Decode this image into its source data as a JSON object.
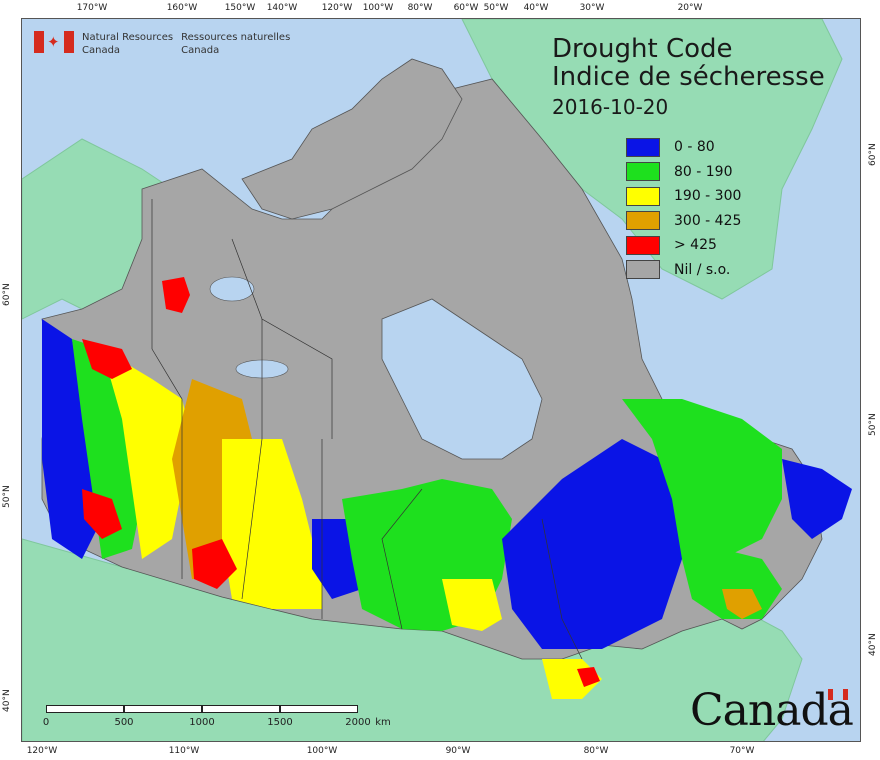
{
  "ticks": {
    "top": [
      "170°W",
      "160°W",
      "150°W",
      "140°W",
      "120°W",
      "100°W",
      "80°W",
      "60°W",
      "50°W",
      "40°W",
      "30°W",
      "20°W"
    ],
    "bottom": [
      "120°W",
      "110°W",
      "100°W",
      "90°W",
      "80°W",
      "70°W"
    ],
    "left": [
      "60°N",
      "50°N",
      "40°N"
    ],
    "right": [
      "60°N",
      "50°N",
      "40°N"
    ]
  },
  "agency": {
    "en_line1": "Natural Resources",
    "en_line2": "Canada",
    "fr_line1": "Ressources naturelles",
    "fr_line2": "Canada"
  },
  "title": {
    "line1": "Drought Code",
    "line2": "Indice de sécheresse",
    "date": "2016-10-20"
  },
  "legend": [
    {
      "label": "0 - 80",
      "color": "#0a14e6"
    },
    {
      "label": "80 - 190",
      "color": "#1ee01e"
    },
    {
      "label": "190 - 300",
      "color": "#ffff00"
    },
    {
      "label": "300 - 425",
      "color": "#e0a000"
    },
    {
      "label": "> 425",
      "color": "#ff0000"
    },
    {
      "label": "Nil / s.o.",
      "color": "#a6a6a6"
    }
  ],
  "scale": {
    "labels": [
      "0",
      "500",
      "1000",
      "1500",
      "2000",
      "km"
    ]
  },
  "wordmark": "Canada",
  "colors": {
    "water": "#b8d4f0",
    "foreign_land": "#96dcb4",
    "nil": "#a6a6a6",
    "low": "#0a14e6",
    "moderate": "#1ee01e",
    "high": "#ffff00",
    "very_high": "#e0a000",
    "extreme": "#ff0000",
    "flag_red": "#d52b1e"
  }
}
